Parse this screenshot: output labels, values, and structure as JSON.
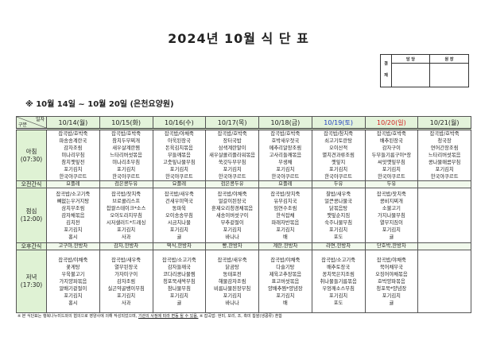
{
  "title": "2024년 10월 식 단 표",
  "approval": {
    "side": "결 재",
    "col1": "담 당",
    "col2": "원 장"
  },
  "subtitle": "※ 10월 14일 ~ 10월 20일 (은천요양원)",
  "header": {
    "corner_top": "일자",
    "corner_bottom": "구분"
  },
  "days": [
    {
      "date": "10/14(월)",
      "type": "weekday"
    },
    {
      "date": "10/15(화)",
      "type": "weekday"
    },
    {
      "date": "10/16(수)",
      "type": "weekday"
    },
    {
      "date": "10/17(목)",
      "type": "weekday"
    },
    {
      "date": "10/18(금)",
      "type": "weekday"
    },
    {
      "date": "10/19(토)",
      "type": "saturday"
    },
    {
      "date": "10/20(일)",
      "type": "sunday"
    },
    {
      "date": "10/21(월)",
      "type": "weekday"
    }
  ],
  "colors": {
    "saturday": "#1f3fbf",
    "sunday": "#d42020",
    "header_bg": "#e3f3da"
  },
  "rows": [
    {
      "label": "아침",
      "time": "(07:30)",
      "kind": "meal",
      "cells": [
        [
          "잡곡밥/호박죽",
          "파송송계란국",
          "감자조림",
          "미나리무침",
          "참치깻잎전",
          "포기김치",
          "한국야쿠르트"
        ],
        [
          "잡곡밥/호박죽",
          "참치두부찌개",
          "새우살계란찜",
          "느타리버섯볶음",
          "미나리초무침",
          "포기김치",
          "한국야쿠르트"
        ],
        [
          "잡곡밥/야채죽",
          "아욱된장국",
          "돈육김치볶음",
          "무들깨볶음",
          "고춧잎나물무침",
          "포기김치",
          "한국야쿠르트"
        ],
        [
          "잡곡밥/호박죽",
          "장터국밥",
          "삼색계란말이",
          "새우살콜리플라워볶음",
          "쑥갓두부무침",
          "포기김치",
          "한국야쿠르트"
        ],
        [
          "잡곡밥/호박죽",
          "호박새우젓국",
          "메추리알장조림",
          "고사리들깨볶음",
          "무생채",
          "포기김치",
          "한국야쿠르트"
        ],
        [
          "잡곡밥/참치죽",
          "쇠고기토란탕",
          "오이산적",
          "멸치견과류조림",
          "깻잎지",
          "포기김치",
          "한국야쿠르트"
        ],
        [
          "잡곡밥/호박죽",
          "배추된장국",
          "감자구이",
          "두부들기름구이*장",
          "씨앗깻잎무침",
          "포기김치",
          "한국야쿠르트"
        ],
        [
          "잡곡밥/호박죽",
          "청국장",
          "연어간장조림",
          "느타리버섯볶음",
          "콩나물매콤무침",
          "포기김치",
          "한국야쿠르트"
        ]
      ]
    },
    {
      "label": "오전간식",
      "kind": "snack",
      "cells": [
        "요플레",
        "검은콩두유",
        "요플레",
        "검은콩두유",
        "요플레",
        "두유",
        "두유",
        ""
      ]
    },
    {
      "label": "점심",
      "time": "(12:00)",
      "kind": "meal",
      "cells": [
        [
          "잡곡밥/소고기죽",
          "뼈없는우거지탕",
          "삼치무조림",
          "감자채볶음",
          "김치전",
          "포기김치",
          "홍시"
        ],
        [
          "잡곡밥/잣치죽",
          "브로콜리스프",
          "찹쌀스테이크*소스",
          "오이도라지무침",
          "시저샐러드*드레싱",
          "포기김치",
          "사과"
        ],
        [
          "잡곡밥/새우죽",
          "건새우미역국",
          "동파육",
          "오이송송무침",
          "시금치나물",
          "포기김치",
          "귤"
        ],
        [
          "잡곡밥/야채죽",
          "얼갈이된장국",
          "훈제오리청경채볶음",
          "새송이버섯구이",
          "부추겉절이",
          "포기김치",
          "바나나"
        ],
        [
          "잡곡밥/잣치죽",
          "유부김치국",
          "임연수조림",
          "한식잡채",
          "파래자반볶음",
          "포기김치",
          "배"
        ],
        [
          "찰밥/새우죽",
          "얼큰콩나물국",
          "닭볶음탕",
          "깻잎순지짐",
          "숙주나물무침",
          "포기김치",
          "포도"
        ],
        [
          "잡곡밥/잣치죽",
          "콩비지찌개",
          "소불고기",
          "가지나물무침",
          "열무지짐이",
          "포기김치",
          "귤"
        ],
        []
      ]
    },
    {
      "label": "오후간식",
      "kind": "snack",
      "cells": [
        "고구마,한방차",
        "감자,한방차",
        "떡식,한방차",
        "빵,한방차",
        "계란,한방차",
        "라면,한방차",
        "단호박,한방차",
        ""
      ]
    },
    {
      "label": "저녁",
      "time": "(17:30)",
      "kind": "meal",
      "cells": [
        [
          "잡곡밥/야채죽",
          "꽃게탕",
          "우육불고기",
          "가지양파볶음",
          "알배기겉절이",
          "포기김치",
          "홍시"
        ],
        [
          "잡곡밥/새우죽",
          "열무된장국",
          "가자미구이",
          "감자조림",
          "실곤약골뱅이무침",
          "포기김치",
          "사과"
        ],
        [
          "잡곡밥/소고기죽",
          "감자들깨국",
          "코다리콩나물찜",
          "청포묵새싹무침",
          "참나물무침",
          "포기김치",
          "귤"
        ],
        [
          "잡곡밥/새우죽",
          "닭곰탕",
          "동태포전",
          "해물감자조림",
          "비름나물된장무침",
          "포기김치",
          "바나나"
        ],
        [
          "잡곡밥/야채죽",
          "다슬기탕",
          "제육고추장볶음",
          "표고버섯볶음",
          "양배추찜*양념장",
          "포기김치",
          "배"
        ],
        [
          "잡곡밥/소고기죽",
          "배추토장국",
          "꽁치묵은지조림",
          "취나물들기름볶음",
          "우엉깨소스무침",
          "포기김치",
          "포도"
        ],
        [
          "잡곡밥/야채죽",
          "북어채무국",
          "오징어야채볶음",
          "호박양파볶음",
          "청포묵*양념장",
          "포기김치",
          "귤"
        ],
        []
      ]
    }
  ],
  "footnote": {
    "part1": "※ 본 식단표는 행복나누미드와의 협의으로 영양사에 의해 작성되었으며,",
    "part2": "기관의 사정에 따라 변동 될 수 있음.",
    "part3": "※ 잡곡밥: 현미, 보리, 조, 흑미 찹쌀(생콩류) 혼합"
  }
}
